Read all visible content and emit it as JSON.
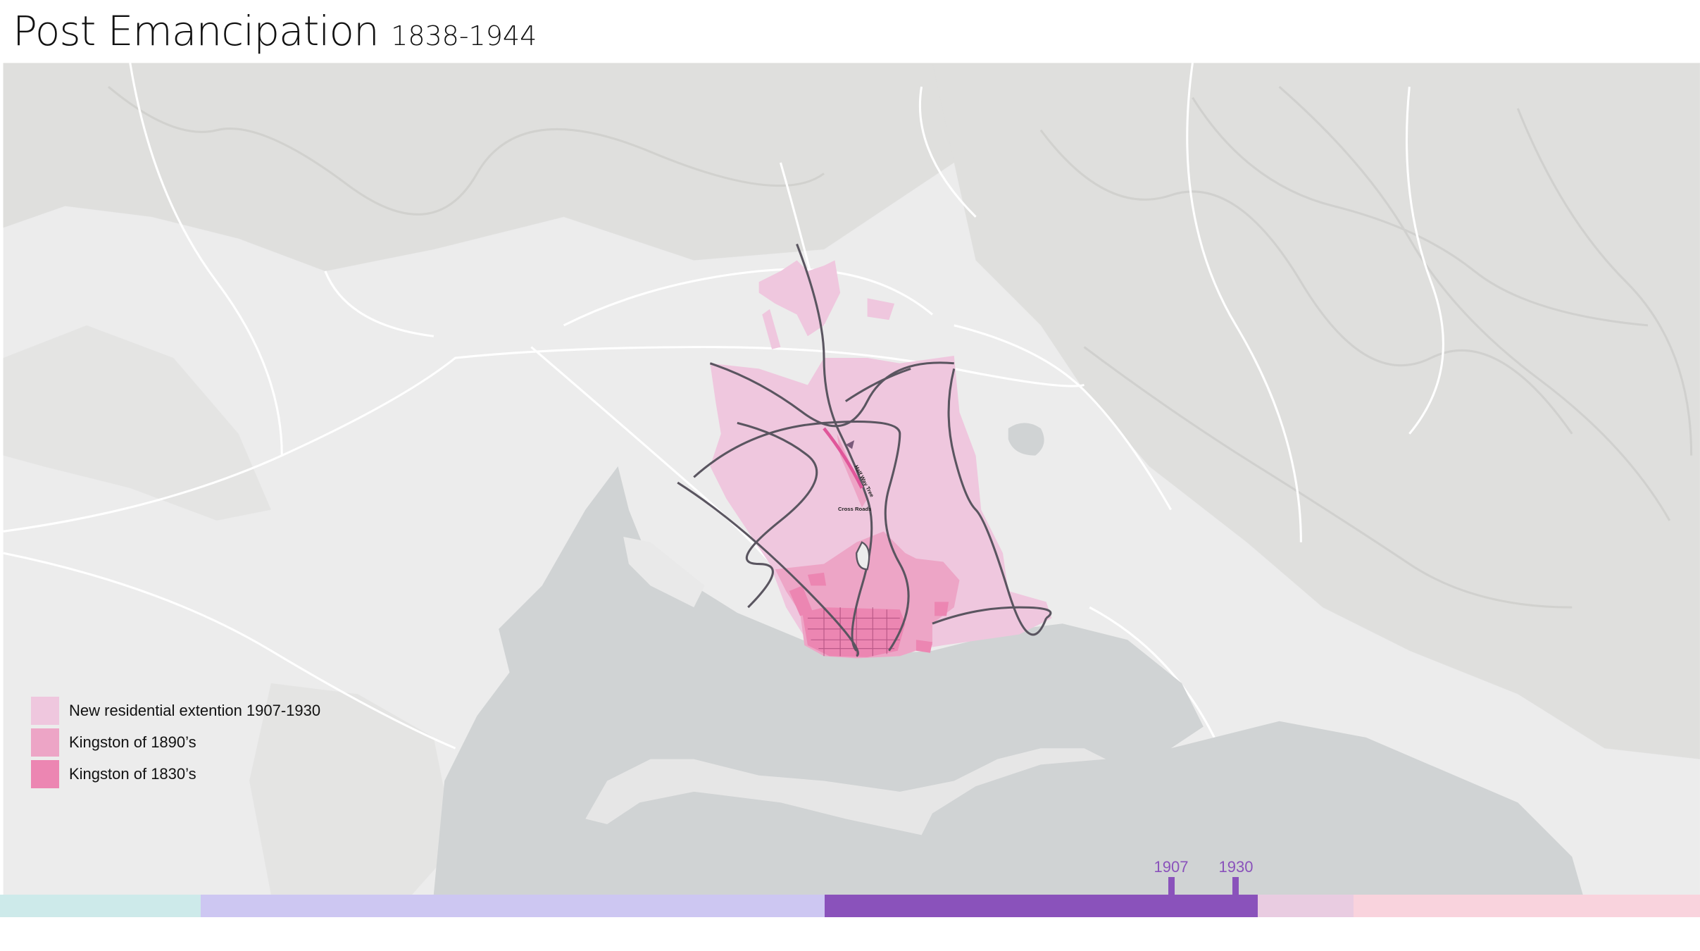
{
  "header": {
    "title": "Post Emancipation",
    "subtitle": "1838-1944"
  },
  "map": {
    "place_labels": [
      "Cross Roads",
      "Half Way Tree"
    ],
    "colors": {
      "land": "#ececec",
      "sea": "#d0d3d4",
      "roads": "#5a5560",
      "minor_roads": "#ffffff"
    }
  },
  "legend": {
    "items": [
      {
        "label": "New residential extention 1907-1930",
        "color": "#efc7de"
      },
      {
        "label": "Kingston of 1890’s",
        "color": "#eda5c6"
      },
      {
        "label": "Kingston of 1830’s",
        "color": "#ec86b2"
      }
    ]
  },
  "timeline": {
    "segments": [
      {
        "color": "#cdeaea",
        "share": 11.8
      },
      {
        "color": "#cdc7f2",
        "share": 36.7
      },
      {
        "color": "#8a52bb",
        "share": 25.5,
        "active": true
      },
      {
        "color": "#e9cce1",
        "share": 5.6
      },
      {
        "color": "#f9d3dd",
        "share": 20.4
      }
    ],
    "markers": [
      {
        "label": "1907"
      },
      {
        "label": "1930"
      }
    ]
  }
}
